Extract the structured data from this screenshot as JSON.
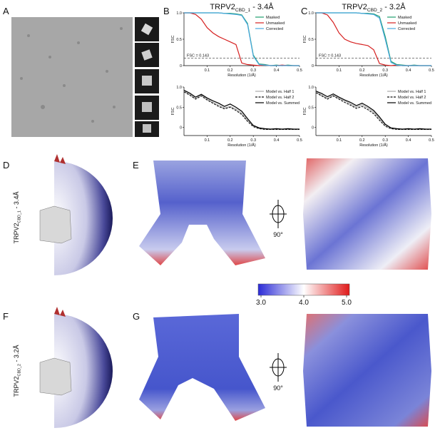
{
  "panel_labels": [
    "A",
    "B",
    "C",
    "D",
    "E",
    "F",
    "G"
  ],
  "fsc_plots": [
    {
      "title": {
        "main": "TRPV2",
        "sub": "CBD_1",
        "suffix": " - 3.4Å"
      },
      "top": {
        "ylabel": "FSC",
        "xlabel": "Resolution (1/Å)",
        "xlim": [
          0,
          0.5
        ],
        "ylim": [
          0,
          1
        ],
        "xticks": [
          0.1,
          0.2,
          0.3,
          0.4,
          0.5
        ],
        "yticks": [
          0,
          {
            "value": 0.5,
            "label": "0.5"
          },
          {
            "value": 1,
            "label": "1.0"
          }
        ],
        "threshold": 0.143,
        "threshold_label": "FSC = 0.143",
        "x": [
          0,
          0.025,
          0.05,
          0.075,
          0.1,
          0.125,
          0.15,
          0.175,
          0.2,
          0.225,
          0.25,
          0.275,
          0.3,
          0.325,
          0.35,
          0.375,
          0.4,
          0.425,
          0.45,
          0.475,
          0.5
        ],
        "series": [
          {
            "name": "Masked",
            "color": "#1f9e6e",
            "values": [
              1,
              1,
              1,
              1,
              1,
              1,
              1,
              0.99,
              0.99,
              0.98,
              0.96,
              0.8,
              0.2,
              0.03,
              0.02,
              0,
              0.01,
              0,
              0.01,
              0,
              0
            ]
          },
          {
            "name": "Unmasked",
            "color": "#d62020",
            "values": [
              1,
              1,
              0.97,
              0.88,
              0.72,
              0.62,
              0.55,
              0.5,
              0.45,
              0.4,
              0.05,
              0.02,
              0.01,
              0,
              0.01,
              0,
              0,
              0.01,
              0,
              0,
              0
            ]
          },
          {
            "name": "Corrected",
            "color": "#4aa8e0",
            "values": [
              1,
              1,
              1,
              1,
              1,
              1,
              1,
              0.99,
              0.98,
              0.97,
              0.95,
              0.78,
              0.18,
              0.02,
              0.01,
              0,
              0,
              0,
              0,
              0,
              0
            ]
          }
        ]
      },
      "bottom": {
        "ylabel": "FSC",
        "xlabel": "Resolution (1/Å)",
        "xlim": [
          0,
          0.5
        ],
        "ylim": [
          -0.2,
          1
        ],
        "xticks": [
          0.1,
          0.2,
          0.3,
          0.4,
          0.5
        ],
        "yticks": [
          0,
          {
            "value": 0.5,
            "label": "0.5"
          },
          {
            "value": 1,
            "label": "1.0"
          }
        ],
        "x": [
          0,
          0.025,
          0.05,
          0.075,
          0.1,
          0.125,
          0.15,
          0.175,
          0.2,
          0.225,
          0.25,
          0.275,
          0.3,
          0.325,
          0.35,
          0.375,
          0.4,
          0.425,
          0.45,
          0.475,
          0.5
        ],
        "series": [
          {
            "name": "Model vs. Half 1",
            "color": "#aaaaaa",
            "dash": false,
            "values": [
              0.9,
              0.82,
              0.72,
              0.8,
              0.7,
              0.62,
              0.55,
              0.48,
              0.52,
              0.45,
              0.35,
              0.18,
              0.04,
              -0.02,
              -0.04,
              -0.05,
              -0.04,
              -0.05,
              -0.04,
              -0.05,
              -0.05
            ]
          },
          {
            "name": "Model vs. Half 2",
            "color": "#111111",
            "dash": true,
            "values": [
              0.88,
              0.8,
              0.7,
              0.78,
              0.68,
              0.6,
              0.52,
              0.46,
              0.5,
              0.42,
              0.32,
              0.15,
              0.02,
              -0.03,
              -0.05,
              -0.05,
              -0.05,
              -0.05,
              -0.05,
              -0.05,
              -0.05
            ]
          },
          {
            "name": "Model vs. Summed",
            "color": "#000000",
            "dash": false,
            "values": [
              0.92,
              0.85,
              0.75,
              0.82,
              0.73,
              0.66,
              0.6,
              0.52,
              0.58,
              0.5,
              0.4,
              0.22,
              0.05,
              -0.01,
              -0.03,
              -0.04,
              -0.03,
              -0.04,
              -0.03,
              -0.04,
              -0.04
            ]
          }
        ]
      }
    },
    {
      "title": {
        "main": "TRPV2",
        "sub": "CBD_2",
        "suffix": " - 3.2Å"
      },
      "top": {
        "ylabel": "FSC",
        "xlabel": "Resolution (1/Å)",
        "xlim": [
          0,
          0.5
        ],
        "ylim": [
          0,
          1
        ],
        "xticks": [
          0.1,
          0.2,
          0.3,
          0.4,
          0.5
        ],
        "yticks": [
          0,
          {
            "value": 0.5,
            "label": "0.5"
          },
          {
            "value": 1,
            "label": "1.0"
          }
        ],
        "threshold": 0.143,
        "threshold_label": "FSC = 0.143",
        "x": [
          0,
          0.025,
          0.05,
          0.075,
          0.1,
          0.125,
          0.15,
          0.175,
          0.2,
          0.225,
          0.25,
          0.275,
          0.3,
          0.325,
          0.35,
          0.375,
          0.4,
          0.425,
          0.45,
          0.475,
          0.5
        ],
        "series": [
          {
            "name": "Masked",
            "color": "#1f9e6e",
            "values": [
              1,
              1,
              1,
              1,
              1,
              1,
              1,
              1,
              0.99,
              0.99,
              0.98,
              0.93,
              0.55,
              0.08,
              0.02,
              0.01,
              0,
              0.01,
              0,
              0,
              0
            ]
          },
          {
            "name": "Unmasked",
            "color": "#d62020",
            "values": [
              1,
              1,
              0.96,
              0.82,
              0.62,
              0.5,
              0.45,
              0.42,
              0.4,
              0.38,
              0.3,
              0.04,
              0.01,
              0,
              0.01,
              0,
              0,
              0,
              0,
              0,
              0
            ]
          },
          {
            "name": "Corrected",
            "color": "#4aa8e0",
            "values": [
              1,
              1,
              1,
              1,
              1,
              1,
              1,
              1,
              0.99,
              0.98,
              0.97,
              0.9,
              0.5,
              0.06,
              0.01,
              0,
              0,
              0,
              0,
              0,
              0
            ]
          }
        ]
      },
      "bottom": {
        "ylabel": "FSC",
        "xlabel": "Resolution (1/Å)",
        "xlim": [
          0,
          0.5
        ],
        "ylim": [
          -0.2,
          1
        ],
        "xticks": [
          0.1,
          0.2,
          0.3,
          0.4,
          0.5
        ],
        "yticks": [
          0,
          {
            "value": 0.5,
            "label": "0.5"
          },
          {
            "value": 1,
            "label": "1.0"
          }
        ],
        "x": [
          0,
          0.025,
          0.05,
          0.075,
          0.1,
          0.125,
          0.15,
          0.175,
          0.2,
          0.225,
          0.25,
          0.275,
          0.3,
          0.325,
          0.35,
          0.375,
          0.4,
          0.425,
          0.45,
          0.475,
          0.5
        ],
        "series": [
          {
            "name": "Model vs. Half 1",
            "color": "#aaaaaa",
            "dash": false,
            "values": [
              0.88,
              0.8,
              0.72,
              0.8,
              0.72,
              0.66,
              0.58,
              0.5,
              0.56,
              0.48,
              0.38,
              0.22,
              0.06,
              -0.02,
              -0.04,
              -0.05,
              -0.04,
              -0.05,
              -0.04,
              -0.05,
              -0.05
            ]
          },
          {
            "name": "Model vs. Half 2",
            "color": "#111111",
            "dash": true,
            "values": [
              0.86,
              0.78,
              0.7,
              0.78,
              0.7,
              0.62,
              0.55,
              0.47,
              0.52,
              0.44,
              0.34,
              0.18,
              0.03,
              -0.03,
              -0.05,
              -0.05,
              -0.05,
              -0.05,
              -0.05,
              -0.05,
              -0.05
            ]
          },
          {
            "name": "Model vs. Summed",
            "color": "#000000",
            "dash": false,
            "values": [
              0.9,
              0.84,
              0.76,
              0.83,
              0.75,
              0.68,
              0.62,
              0.54,
              0.6,
              0.52,
              0.42,
              0.26,
              0.08,
              -0.01,
              -0.03,
              -0.04,
              -0.03,
              -0.04,
              -0.03,
              -0.04,
              -0.04
            ]
          }
        ]
      }
    }
  ],
  "angular_labels": [
    {
      "main": "TRPV2",
      "sub": "CBD_1",
      "suffix": " - 3.4Å"
    },
    {
      "main": "TRPV2",
      "sub": "CBD_2",
      "suffix": " - 3.2Å"
    }
  ],
  "rotation_labels": [
    "90°",
    "90°"
  ],
  "colorbar": {
    "lim": [
      3,
      5
    ],
    "ticks": [
      {
        "value": 3,
        "label": "3.0"
      },
      {
        "value": 4,
        "label": "4.0"
      },
      {
        "value": 5,
        "label": "5.0"
      }
    ]
  }
}
